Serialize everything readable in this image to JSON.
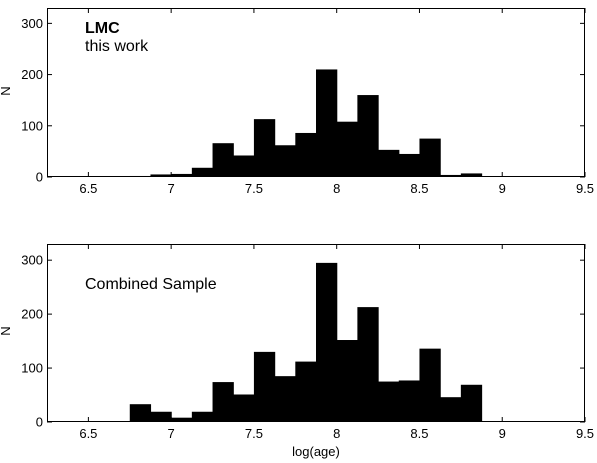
{
  "chart_data": [
    {
      "type": "bar",
      "annotations": [
        "LMC",
        "this work"
      ],
      "xlabel": "",
      "ylabel": "N",
      "xlim": [
        6.25,
        9.5
      ],
      "ylim": [
        0,
        330
      ],
      "xticks": [
        "6.5",
        "7",
        "7.5",
        "8",
        "8.5",
        "9",
        "9.5"
      ],
      "yticks": [
        "0",
        "100",
        "200",
        "300"
      ],
      "bin_edges": [
        6.75,
        6.875,
        7.0,
        7.125,
        7.25,
        7.375,
        7.5,
        7.625,
        7.75,
        7.875,
        8.0,
        8.125,
        8.25,
        8.375,
        8.5,
        8.625,
        8.75,
        8.875,
        9.0,
        9.125
      ],
      "values": [
        2,
        5,
        6,
        18,
        66,
        42,
        113,
        62,
        86,
        210,
        108,
        160,
        53,
        45,
        75,
        4,
        7,
        0,
        0
      ],
      "color": "#000000",
      "grid": false
    },
    {
      "type": "bar",
      "annotations": [
        "Combined Sample"
      ],
      "xlabel": "log(age)",
      "ylabel": "N",
      "xlim": [
        6.25,
        9.5
      ],
      "ylim": [
        0,
        330
      ],
      "xticks": [
        "6.5",
        "7",
        "7.5",
        "8",
        "8.5",
        "9",
        "9.5"
      ],
      "yticks": [
        "0",
        "100",
        "200",
        "300"
      ],
      "bin_edges": [
        6.75,
        6.875,
        7.0,
        7.125,
        7.25,
        7.375,
        7.5,
        7.625,
        7.75,
        7.875,
        8.0,
        8.125,
        8.25,
        8.375,
        8.5,
        8.625,
        8.75,
        8.875,
        9.0,
        9.125
      ],
      "values": [
        33,
        19,
        8,
        19,
        74,
        51,
        130,
        85,
        112,
        295,
        152,
        213,
        75,
        77,
        136,
        46,
        69,
        0,
        0
      ],
      "color": "#000000",
      "grid": false
    }
  ]
}
